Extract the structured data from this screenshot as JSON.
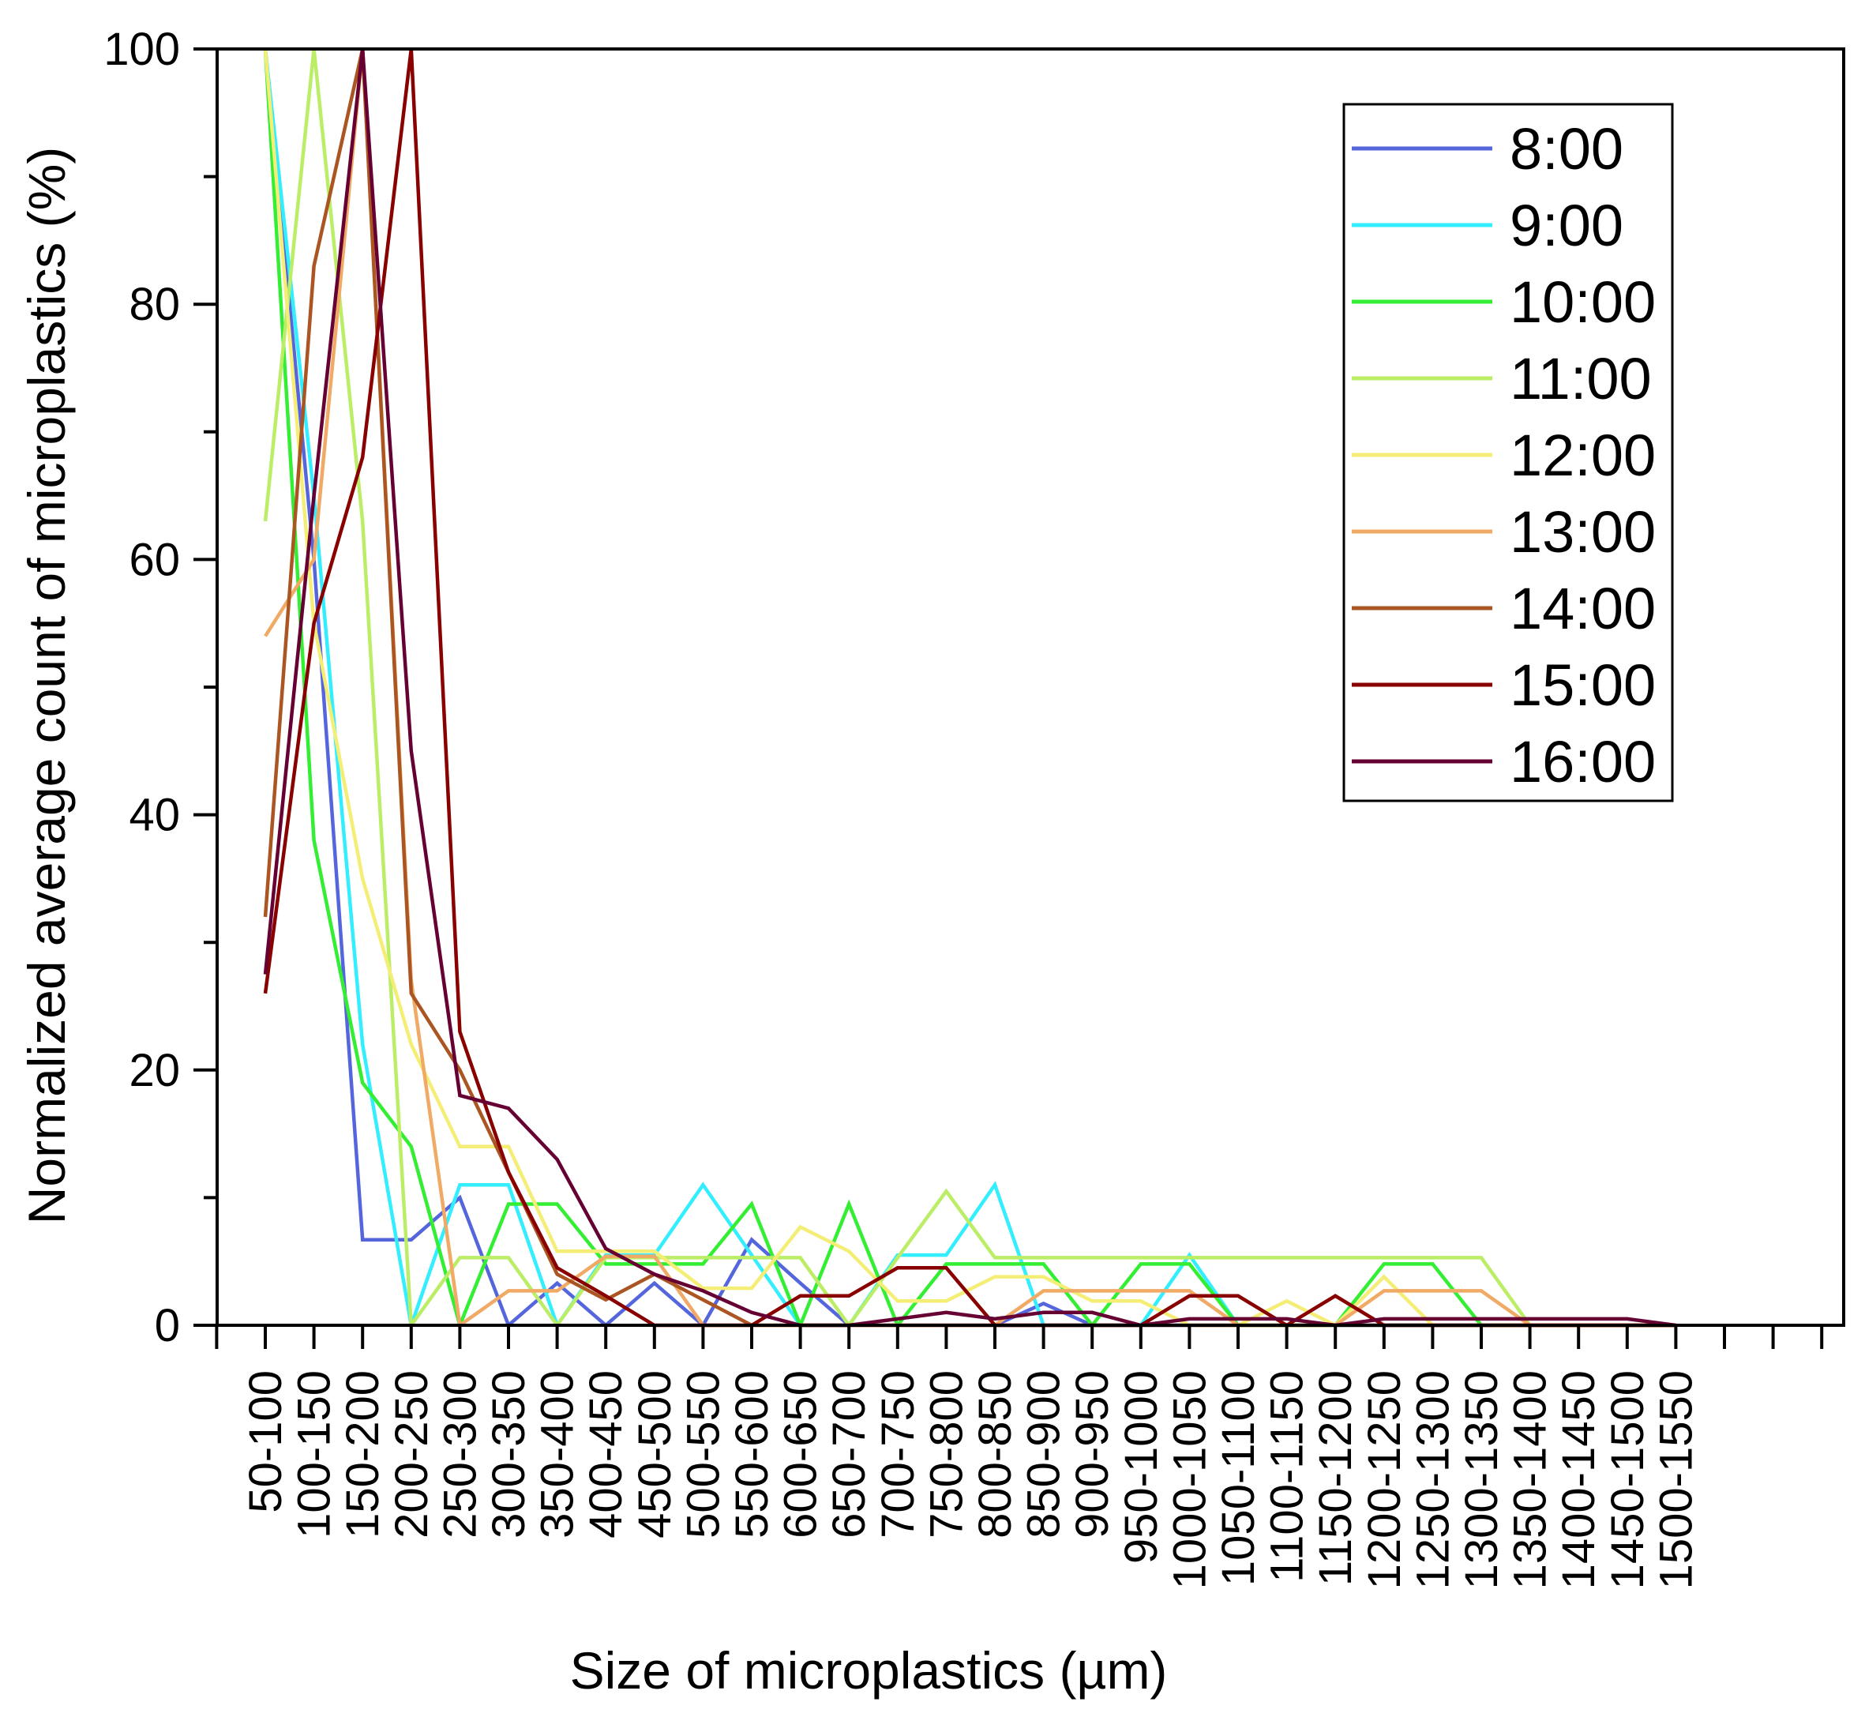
{
  "chart_data": {
    "type": "line",
    "xlabel": "Size of microplastics (µm)",
    "ylabel": "Normalized average count of microplastics (%)",
    "ylim": [
      0,
      100
    ],
    "yticks": [
      0,
      20,
      40,
      60,
      80,
      100
    ],
    "grid": false,
    "legend_position": "top-right",
    "categories": [
      "50-100",
      "100-150",
      "150-200",
      "200-250",
      "250-300",
      "300-350",
      "350-400",
      "400-450",
      "450-500",
      "500-550",
      "550-600",
      "600-650",
      "650-700",
      "700-750",
      "750-800",
      "800-850",
      "850-900",
      "900-950",
      "950-1000",
      "1000-1050",
      "1050-1100",
      "1100-1150",
      "1150-1200",
      "1200-1250",
      "1250-1300",
      "1300-1350",
      "1350-1400",
      "1400-1450",
      "1450-1500",
      "1500-1550"
    ],
    "series": [
      {
        "name": "8:00",
        "color": "#5566dd",
        "values": [
          100,
          60,
          6.7,
          6.7,
          10,
          0,
          3.3,
          0,
          3.3,
          0,
          6.7,
          3.3,
          0,
          0,
          0,
          0,
          1.7,
          0,
          0,
          0,
          0,
          0,
          0,
          0,
          0,
          0,
          0,
          0,
          0,
          0
        ]
      },
      {
        "name": "9:00",
        "color": "#33eeff",
        "values": [
          100,
          65,
          22,
          0,
          11,
          11,
          0,
          5.5,
          5.5,
          11,
          5.5,
          0,
          0,
          5.5,
          5.5,
          11,
          0,
          0,
          0,
          5.5,
          0,
          0,
          0,
          0,
          0,
          0,
          0,
          0,
          0,
          0
        ]
      },
      {
        "name": "10:00",
        "color": "#33ee33",
        "values": [
          100,
          38,
          19,
          14,
          0,
          9.5,
          9.5,
          4.8,
          4.8,
          4.8,
          9.5,
          0,
          9.5,
          0,
          4.8,
          4.8,
          4.8,
          0,
          4.8,
          4.8,
          0,
          0,
          0,
          4.8,
          4.8,
          0,
          0,
          0,
          0,
          0
        ]
      },
      {
        "name": "11:00",
        "color": "#bbee66",
        "values": [
          63,
          100,
          63,
          0,
          5.3,
          5.3,
          0,
          5.3,
          5.3,
          5.3,
          5.3,
          5.3,
          0,
          5.3,
          10.5,
          5.3,
          5.3,
          5.3,
          5.3,
          5.3,
          5.3,
          5.3,
          5.3,
          5.3,
          5.3,
          5.3,
          0,
          0,
          0,
          0
        ]
      },
      {
        "name": "12:00",
        "color": "#f4ee77",
        "values": [
          100,
          55,
          35,
          22,
          14,
          14,
          5.8,
          5.8,
          5.8,
          2.9,
          2.9,
          7.7,
          5.8,
          1.9,
          1.9,
          3.8,
          3.8,
          1.9,
          1.9,
          0,
          0,
          1.9,
          0,
          3.8,
          0,
          0,
          0,
          0,
          0,
          0
        ]
      },
      {
        "name": "13:00",
        "color": "#f0aa66",
        "values": [
          54,
          60,
          100,
          27,
          0,
          2.7,
          2.7,
          5.4,
          5.4,
          0,
          0,
          0,
          0,
          0,
          0,
          0,
          2.7,
          2.7,
          2.7,
          2.7,
          0,
          0,
          0,
          2.7,
          2.7,
          2.7,
          0,
          0,
          0,
          0
        ]
      },
      {
        "name": "14:00",
        "color": "#aa5522",
        "values": [
          32,
          83,
          100,
          26,
          20,
          12,
          4,
          2,
          4,
          2,
          0,
          0,
          0,
          0,
          0,
          0,
          0,
          0,
          0,
          0,
          0,
          0,
          0,
          0,
          0,
          0,
          0,
          0,
          0,
          0
        ]
      },
      {
        "name": "15:00",
        "color": "#880000",
        "values": [
          26,
          55,
          68,
          100,
          23,
          12,
          4.5,
          2.3,
          0,
          0,
          0,
          2.3,
          2.3,
          4.5,
          4.5,
          0,
          0,
          0,
          0,
          2.3,
          2.3,
          0,
          2.3,
          0,
          0,
          0,
          0,
          0,
          0,
          0
        ]
      },
      {
        "name": "16:00",
        "color": "#660033",
        "values": [
          27.5,
          65,
          100,
          45,
          18,
          17,
          13,
          6,
          4,
          2.7,
          1,
          0,
          0,
          0.5,
          1,
          0.5,
          1,
          1,
          0,
          0.5,
          0.5,
          0.5,
          0,
          0.5,
          0.5,
          0.5,
          0.5,
          0.5,
          0.5,
          0
        ]
      }
    ]
  }
}
